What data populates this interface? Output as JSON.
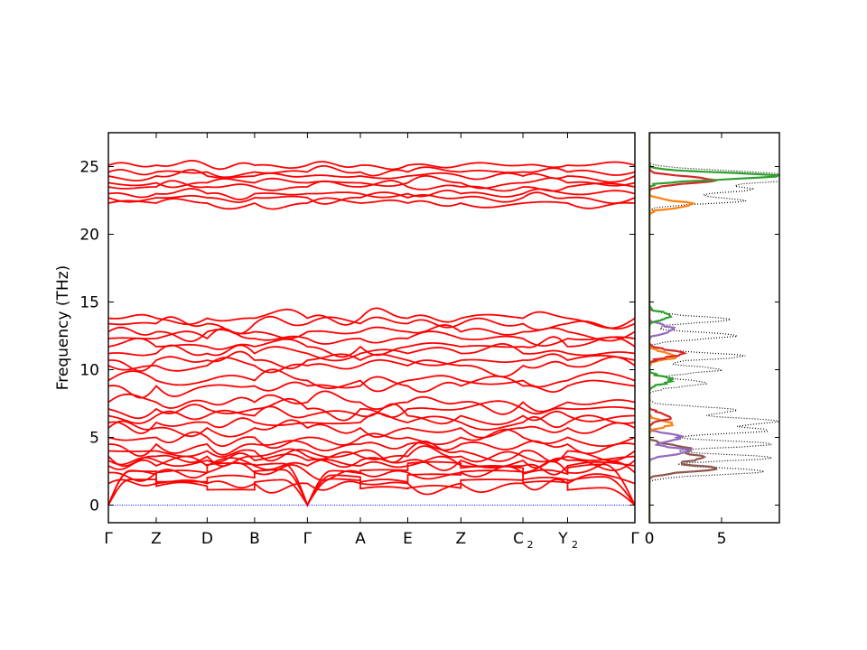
{
  "chart_data": [
    {
      "type": "line",
      "title": "",
      "ylabel": "Frequency (THz)",
      "ylim": [
        -1.3,
        27.5
      ],
      "grid": false,
      "kpoints": [
        "Γ",
        "Z",
        "D",
        "B",
        "Γ",
        "A",
        "E",
        "Z",
        "C",
        "Y",
        "Γ"
      ],
      "kpoint_subscripts": [
        "",
        "",
        "",
        "",
        "",
        "",
        "",
        "",
        "2",
        "2",
        ""
      ],
      "yticks": [
        0,
        5,
        10,
        15,
        20,
        25
      ],
      "series_color": "#ff0000",
      "zero_line_color": "#0000ff",
      "bands_at_gamma": [
        0,
        0,
        0,
        1.6,
        2.4,
        2.9,
        3.3,
        3.6,
        4.0,
        4.5,
        5.0,
        5.7,
        6.1,
        6.6,
        7.1,
        7.6,
        8.8,
        9.2,
        10.3,
        10.7,
        11.2,
        11.7,
        12.3,
        12.8,
        13.4,
        13.8,
        22.3,
        22.7,
        23.0,
        23.5,
        23.8,
        24.3,
        24.6,
        25.1
      ],
      "band_range_low": [
        0,
        14.8
      ],
      "band_range_high": [
        21.8,
        25.9
      ]
    },
    {
      "type": "line",
      "title": "",
      "xlabel": "",
      "xlim": [
        0,
        9
      ],
      "xticks": [
        0,
        5
      ],
      "ylim": [
        -1.3,
        27.5
      ],
      "series": [
        {
          "color": "#000000",
          "style": "dotted",
          "peaks": [
            [
              2.5,
              8.0
            ],
            [
              3.5,
              8.5
            ],
            [
              4.5,
              8.8
            ],
            [
              5.5,
              8.2
            ],
            [
              6.2,
              9.0
            ],
            [
              7.0,
              6.0
            ],
            [
              9.0,
              4.0
            ],
            [
              10.0,
              5.0
            ],
            [
              11.0,
              6.5
            ],
            [
              12.5,
              6.0
            ],
            [
              13.7,
              5.5
            ],
            [
              22.5,
              6.5
            ],
            [
              23.3,
              7.0
            ],
            [
              24.0,
              9.0
            ],
            [
              24.5,
              7.5
            ]
          ]
        },
        {
          "color": "#8c564b",
          "peaks": [
            [
              2.7,
              4.5
            ],
            [
              3.5,
              3.8
            ],
            [
              4.2,
              2.8
            ]
          ]
        },
        {
          "color": "#9467bd",
          "peaks": [
            [
              4.0,
              2.8
            ],
            [
              5.0,
              2.2
            ],
            [
              13.0,
              1.8
            ]
          ]
        },
        {
          "color": "#ff7f0e",
          "peaks": [
            [
              6.0,
              1.5
            ],
            [
              11.0,
              1.9
            ],
            [
              22.2,
              3.0
            ]
          ]
        },
        {
          "color": "#d62728",
          "peaks": [
            [
              6.5,
              1.5
            ],
            [
              11.2,
              2.2
            ],
            [
              24.0,
              4.5
            ]
          ]
        },
        {
          "color": "#2ca02c",
          "peaks": [
            [
              9.2,
              1.6
            ],
            [
              14.0,
              1.5
            ],
            [
              24.3,
              8.8
            ]
          ]
        }
      ]
    }
  ]
}
